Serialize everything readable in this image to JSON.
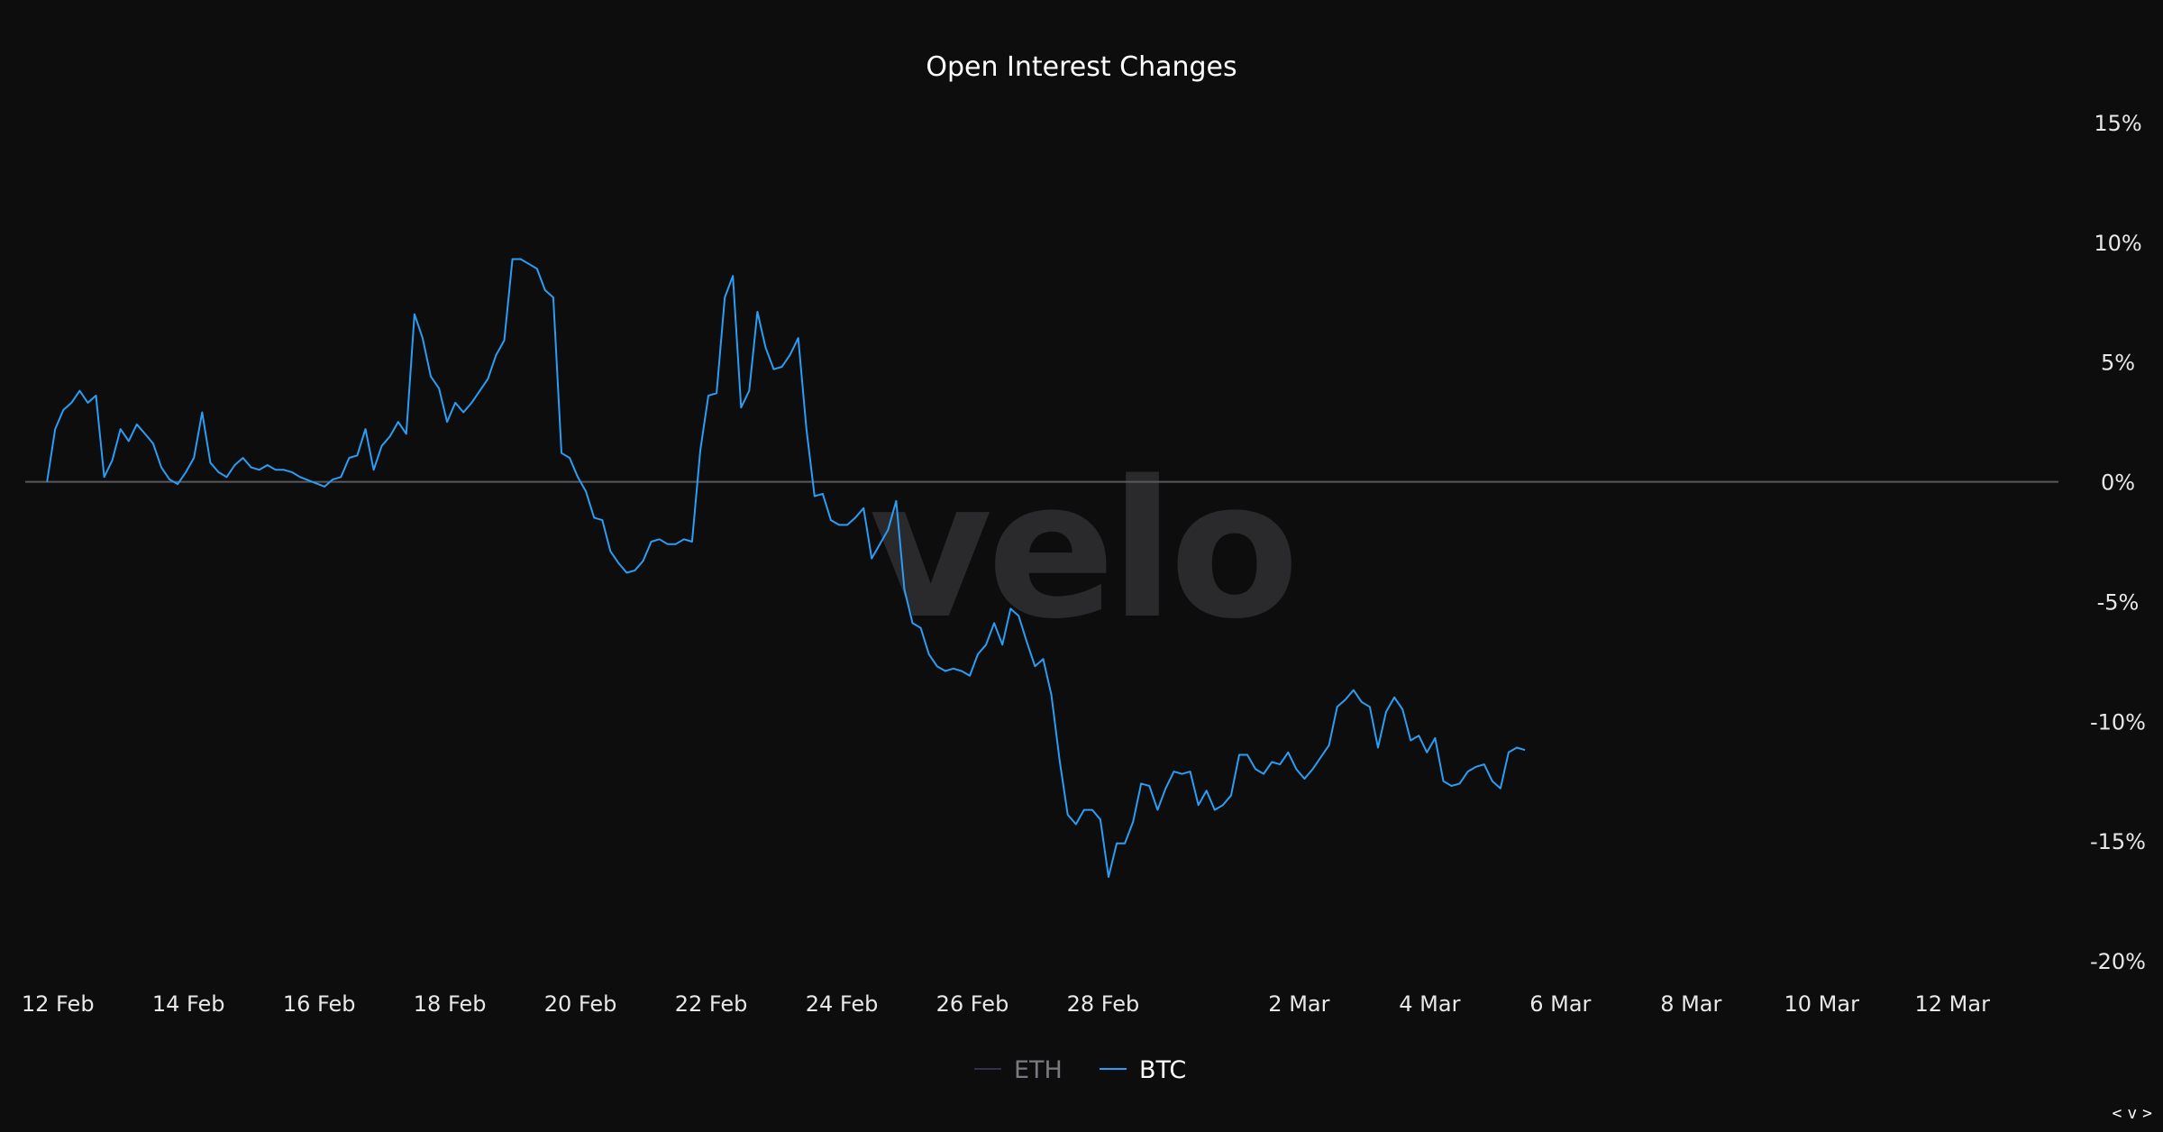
{
  "chart_data": {
    "type": "line",
    "title": "Open Interest Changes",
    "xlabel": "",
    "ylabel": "",
    "x_ticks": [
      "12 Feb",
      "14 Feb",
      "16 Feb",
      "18 Feb",
      "20 Feb",
      "22 Feb",
      "24 Feb",
      "26 Feb",
      "28 Feb",
      "2 Mar",
      "4 Mar",
      "6 Mar",
      "8 Mar",
      "10 Mar",
      "12 Mar"
    ],
    "y_ticks": [
      "15%",
      "10%",
      "5%",
      "0%",
      "-5%",
      "-10%",
      "-15%",
      "-20%"
    ],
    "ylim": [
      -20,
      15
    ],
    "xlim": [
      "2024-02-11T12:00",
      "2024-03-13T15:00"
    ],
    "y_axis_position": "right",
    "grid": false,
    "zero_line": true,
    "legend_position": "bottom-center",
    "watermark": "velo",
    "colors": {
      "ETH": "#33304a",
      "BTC": "#2a9df4",
      "background": "#0d0d0e",
      "zero_line": "#5a5a5e"
    },
    "series": [
      {
        "name": "ETH",
        "visible": false,
        "points": []
      },
      {
        "name": "BTC",
        "visible": true,
        "points": [
          [
            "2024-02-11T20:00",
            0
          ],
          [
            "2024-02-11T23:00",
            2.2
          ],
          [
            "2024-02-12T02:00",
            3.0
          ],
          [
            "2024-02-12T05:00",
            3.3
          ],
          [
            "2024-02-12T08:00",
            3.8
          ],
          [
            "2024-02-12T11:00",
            3.3
          ],
          [
            "2024-02-12T14:00",
            3.6
          ],
          [
            "2024-02-12T17:00",
            0.2
          ],
          [
            "2024-02-12T20:00",
            0.9
          ],
          [
            "2024-02-12T23:00",
            2.2
          ],
          [
            "2024-02-13T02:00",
            1.7
          ],
          [
            "2024-02-13T05:00",
            2.4
          ],
          [
            "2024-02-13T08:00",
            2.0
          ],
          [
            "2024-02-13T11:00",
            1.6
          ],
          [
            "2024-02-13T14:00",
            0.6
          ],
          [
            "2024-02-13T17:00",
            0.1
          ],
          [
            "2024-02-13T20:00",
            -0.1
          ],
          [
            "2024-02-13T23:00",
            0.4
          ],
          [
            "2024-02-14T02:00",
            1.0
          ],
          [
            "2024-02-14T05:00",
            2.9
          ],
          [
            "2024-02-14T08:00",
            0.8
          ],
          [
            "2024-02-14T11:00",
            0.4
          ],
          [
            "2024-02-14T14:00",
            0.2
          ],
          [
            "2024-02-14T17:00",
            0.7
          ],
          [
            "2024-02-14T20:00",
            1.0
          ],
          [
            "2024-02-14T23:00",
            0.6
          ],
          [
            "2024-02-15T02:00",
            0.5
          ],
          [
            "2024-02-15T05:00",
            0.7
          ],
          [
            "2024-02-15T08:00",
            0.5
          ],
          [
            "2024-02-15T11:00",
            0.5
          ],
          [
            "2024-02-15T14:00",
            0.4
          ],
          [
            "2024-02-15T17:00",
            0.2
          ],
          [
            "2024-02-16T02:00",
            -0.2
          ],
          [
            "2024-02-16T05:00",
            0.1
          ],
          [
            "2024-02-16T08:00",
            0.2
          ],
          [
            "2024-02-16T11:00",
            1.0
          ],
          [
            "2024-02-16T14:00",
            1.1
          ],
          [
            "2024-02-16T17:00",
            2.2
          ],
          [
            "2024-02-16T20:00",
            0.5
          ],
          [
            "2024-02-16T23:00",
            1.5
          ],
          [
            "2024-02-17T02:00",
            1.9
          ],
          [
            "2024-02-17T05:00",
            2.5
          ],
          [
            "2024-02-17T08:00",
            2.0
          ],
          [
            "2024-02-17T11:00",
            7.0
          ],
          [
            "2024-02-17T14:00",
            6.0
          ],
          [
            "2024-02-17T17:00",
            4.4
          ],
          [
            "2024-02-17T20:00",
            3.9
          ],
          [
            "2024-02-17T23:00",
            2.5
          ],
          [
            "2024-02-18T02:00",
            3.3
          ],
          [
            "2024-02-18T05:00",
            2.9
          ],
          [
            "2024-02-18T08:00",
            3.3
          ],
          [
            "2024-02-18T11:00",
            3.8
          ],
          [
            "2024-02-18T14:00",
            4.3
          ],
          [
            "2024-02-18T17:00",
            5.3
          ],
          [
            "2024-02-18T20:00",
            5.9
          ],
          [
            "2024-02-18T23:00",
            9.3
          ],
          [
            "2024-02-19T02:00",
            9.3
          ],
          [
            "2024-02-19T05:00",
            9.1
          ],
          [
            "2024-02-19T08:00",
            8.9
          ],
          [
            "2024-02-19T11:00",
            8.0
          ],
          [
            "2024-02-19T14:00",
            7.7
          ],
          [
            "2024-02-19T17:00",
            1.2
          ],
          [
            "2024-02-19T20:00",
            1.0
          ],
          [
            "2024-02-19T23:00",
            0.2
          ],
          [
            "2024-02-20T02:00",
            -0.4
          ],
          [
            "2024-02-20T05:00",
            -1.5
          ],
          [
            "2024-02-20T08:00",
            -1.6
          ],
          [
            "2024-02-20T11:00",
            -2.9
          ],
          [
            "2024-02-20T14:00",
            -3.4
          ],
          [
            "2024-02-20T17:00",
            -3.8
          ],
          [
            "2024-02-20T20:00",
            -3.7
          ],
          [
            "2024-02-20T23:00",
            -3.3
          ],
          [
            "2024-02-21T02:00",
            -2.5
          ],
          [
            "2024-02-21T05:00",
            -2.4
          ],
          [
            "2024-02-21T08:00",
            -2.6
          ],
          [
            "2024-02-21T11:00",
            -2.6
          ],
          [
            "2024-02-21T14:00",
            -2.4
          ],
          [
            "2024-02-21T17:00",
            -2.5
          ],
          [
            "2024-02-21T20:00",
            1.3
          ],
          [
            "2024-02-21T23:00",
            3.6
          ],
          [
            "2024-02-22T02:00",
            3.7
          ],
          [
            "2024-02-22T05:00",
            7.7
          ],
          [
            "2024-02-22T08:00",
            8.6
          ],
          [
            "2024-02-22T11:00",
            3.1
          ],
          [
            "2024-02-22T14:00",
            3.8
          ],
          [
            "2024-02-22T17:00",
            7.1
          ],
          [
            "2024-02-22T20:00",
            5.6
          ],
          [
            "2024-02-22T23:00",
            4.7
          ],
          [
            "2024-02-23T02:00",
            4.8
          ],
          [
            "2024-02-23T05:00",
            5.3
          ],
          [
            "2024-02-23T08:00",
            6.0
          ],
          [
            "2024-02-23T11:00",
            2.2
          ],
          [
            "2024-02-23T14:00",
            -0.6
          ],
          [
            "2024-02-23T17:00",
            -0.5
          ],
          [
            "2024-02-23T20:00",
            -1.6
          ],
          [
            "2024-02-23T23:00",
            -1.8
          ],
          [
            "2024-02-24T02:00",
            -1.8
          ],
          [
            "2024-02-24T05:00",
            -1.5
          ],
          [
            "2024-02-24T08:00",
            -1.1
          ],
          [
            "2024-02-24T11:00",
            -3.2
          ],
          [
            "2024-02-24T14:00",
            -2.6
          ],
          [
            "2024-02-24T17:00",
            -2.0
          ],
          [
            "2024-02-24T20:00",
            -0.8
          ],
          [
            "2024-02-24T23:00",
            -4.5
          ],
          [
            "2024-02-25T02:00",
            -5.9
          ],
          [
            "2024-02-25T05:00",
            -6.1
          ],
          [
            "2024-02-25T08:00",
            -7.2
          ],
          [
            "2024-02-25T11:00",
            -7.7
          ],
          [
            "2024-02-25T14:00",
            -7.9
          ],
          [
            "2024-02-25T17:00",
            -7.8
          ],
          [
            "2024-02-25T20:00",
            -7.9
          ],
          [
            "2024-02-25T23:00",
            -8.1
          ],
          [
            "2024-02-26T02:00",
            -7.2
          ],
          [
            "2024-02-26T05:00",
            -6.8
          ],
          [
            "2024-02-26T08:00",
            -5.9
          ],
          [
            "2024-02-26T11:00",
            -6.8
          ],
          [
            "2024-02-26T14:00",
            -5.3
          ],
          [
            "2024-02-26T17:00",
            -5.6
          ],
          [
            "2024-02-26T20:00",
            -6.7
          ],
          [
            "2024-02-26T23:00",
            -7.7
          ],
          [
            "2024-02-27T02:00",
            -7.4
          ],
          [
            "2024-02-27T05:00",
            -8.9
          ],
          [
            "2024-02-27T08:00",
            -11.6
          ],
          [
            "2024-02-27T11:00",
            -13.9
          ],
          [
            "2024-02-27T14:00",
            -14.3
          ],
          [
            "2024-02-27T17:00",
            -13.7
          ],
          [
            "2024-02-27T20:00",
            -13.7
          ],
          [
            "2024-02-27T23:00",
            -14.1
          ],
          [
            "2024-02-28T02:00",
            -16.5
          ],
          [
            "2024-02-28T05:00",
            -15.1
          ],
          [
            "2024-02-28T08:00",
            -15.1
          ],
          [
            "2024-02-28T11:00",
            -14.2
          ],
          [
            "2024-02-28T14:00",
            -12.6
          ],
          [
            "2024-02-28T17:00",
            -12.7
          ],
          [
            "2024-02-28T20:00",
            -13.7
          ],
          [
            "2024-02-28T23:00",
            -12.8
          ],
          [
            "2024-02-29T02:00",
            -12.1
          ],
          [
            "2024-02-29T05:00",
            -12.2
          ],
          [
            "2024-02-29T08:00",
            -12.1
          ],
          [
            "2024-02-29T11:00",
            -13.5
          ],
          [
            "2024-02-29T14:00",
            -12.9
          ],
          [
            "2024-02-29T17:00",
            -13.7
          ],
          [
            "2024-02-29T20:00",
            -13.5
          ],
          [
            "2024-02-29T23:00",
            -13.1
          ],
          [
            "2024-03-01T02:00",
            -11.4
          ],
          [
            "2024-03-01T05:00",
            -11.4
          ],
          [
            "2024-03-01T08:00",
            -12.0
          ],
          [
            "2024-03-01T11:00",
            -12.2
          ],
          [
            "2024-03-01T14:00",
            -11.7
          ],
          [
            "2024-03-01T17:00",
            -11.8
          ],
          [
            "2024-03-01T20:00",
            -11.3
          ],
          [
            "2024-03-01T23:00",
            -12.0
          ],
          [
            "2024-03-02T02:00",
            -12.4
          ],
          [
            "2024-03-02T05:00",
            -12.0
          ],
          [
            "2024-03-02T08:00",
            -11.5
          ],
          [
            "2024-03-02T11:00",
            -11.0
          ],
          [
            "2024-03-02T14:00",
            -9.4
          ],
          [
            "2024-03-02T17:00",
            -9.1
          ],
          [
            "2024-03-02T20:00",
            -8.7
          ],
          [
            "2024-03-02T23:00",
            -9.2
          ],
          [
            "2024-03-03T02:00",
            -9.4
          ],
          [
            "2024-03-03T05:00",
            -11.1
          ],
          [
            "2024-03-03T08:00",
            -9.6
          ],
          [
            "2024-03-03T11:00",
            -9.0
          ],
          [
            "2024-03-03T14:00",
            -9.5
          ],
          [
            "2024-03-03T17:00",
            -10.8
          ],
          [
            "2024-03-03T20:00",
            -10.6
          ],
          [
            "2024-03-03T23:00",
            -11.3
          ],
          [
            "2024-03-04T02:00",
            -10.7
          ],
          [
            "2024-03-04T05:00",
            -12.5
          ],
          [
            "2024-03-04T08:00",
            -12.7
          ],
          [
            "2024-03-04T11:00",
            -12.6
          ],
          [
            "2024-03-04T14:00",
            -12.1
          ],
          [
            "2024-03-04T17:00",
            -11.9
          ],
          [
            "2024-03-04T20:00",
            -11.8
          ],
          [
            "2024-03-04T23:00",
            -12.5
          ],
          [
            "2024-03-05T02:00",
            -12.8
          ],
          [
            "2024-03-05T05:00",
            -11.3
          ],
          [
            "2024-03-05T08:00",
            -11.1
          ],
          [
            "2024-03-05T11:00",
            -11.2
          ]
        ]
      }
    ]
  }
}
